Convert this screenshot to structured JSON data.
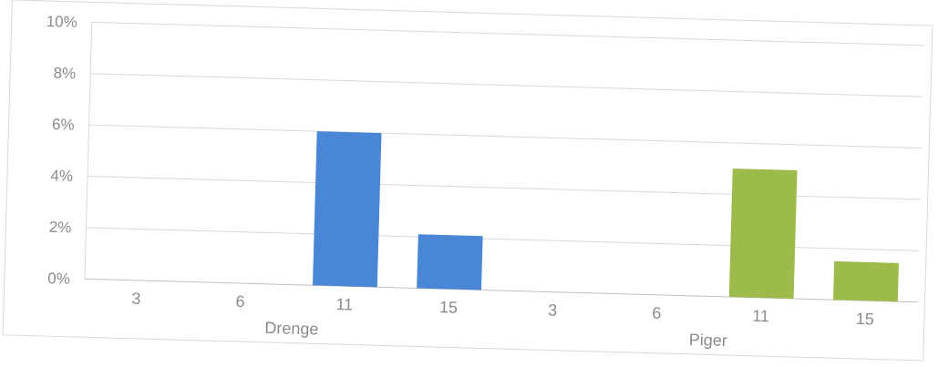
{
  "chart_data": {
    "type": "bar",
    "title": "",
    "xlabel": "",
    "ylabel": "",
    "ylim": [
      0,
      10
    ],
    "yticks": [
      "0%",
      "2%",
      "4%",
      "6%",
      "8%",
      "10%"
    ],
    "grid": true,
    "legend": "none",
    "groups": [
      {
        "name": "Drenge",
        "color": "#4a86d6",
        "categories": [
          "3",
          "6",
          "11",
          "15"
        ],
        "values": [
          0,
          0,
          6.0,
          2.1
        ]
      },
      {
        "name": "Piger",
        "color": "#9dbb4a",
        "categories": [
          "3",
          "6",
          "11",
          "15"
        ],
        "values": [
          0,
          0,
          5.0,
          1.5
        ]
      }
    ]
  }
}
